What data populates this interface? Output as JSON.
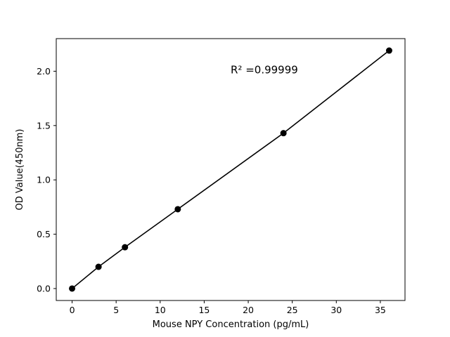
{
  "chart_data": {
    "type": "scatter",
    "x": [
      0,
      3,
      6,
      12,
      24,
      36
    ],
    "y": [
      0.0,
      0.2,
      0.38,
      0.73,
      1.43,
      2.19
    ],
    "line_through_points": true,
    "title": "",
    "xlabel": "Mouse NPY Concentration (pg/mL)",
    "ylabel": "OD Value(450nm)",
    "annotation": {
      "text": "R² =0.99999",
      "x": 18,
      "y": 1.98
    },
    "xlim": [
      -1.8,
      37.8
    ],
    "ylim": [
      -0.11,
      2.3
    ],
    "xticks": [
      0,
      5,
      10,
      15,
      20,
      25,
      30,
      35
    ],
    "yticks": [
      0.0,
      0.5,
      1.0,
      1.5,
      2.0
    ],
    "grid": false,
    "legend": "none",
    "marker": {
      "shape": "circle",
      "color": "#000000",
      "radius": 4.5
    },
    "line": {
      "color": "#000000",
      "width": 1.6
    },
    "spine_color": "#000000",
    "background_color": "#ffffff"
  }
}
